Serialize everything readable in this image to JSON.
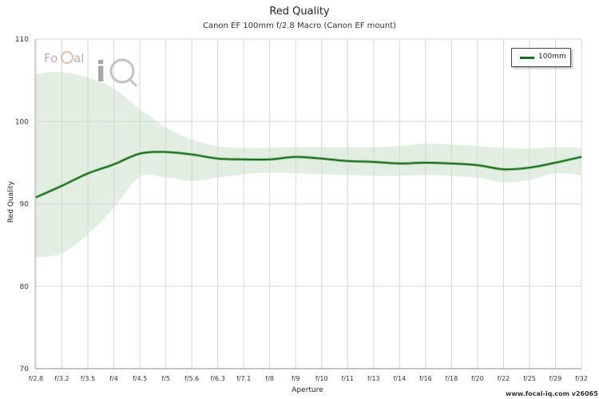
{
  "chart_data": {
    "type": "line",
    "title": "Red Quality",
    "subtitle": "Canon EF 100mm f/2.8 Macro (Canon EF mount)",
    "xlabel": "Aperture",
    "ylabel": "Red Quality",
    "ylim": [
      70,
      110
    ],
    "yticks": [
      70,
      80,
      90,
      100,
      110
    ],
    "categories": [
      "f/2.8",
      "f/3.2",
      "f/3.5",
      "f/4",
      "f/4.5",
      "f/5",
      "f/5.6",
      "f/6.3",
      "f/7.1",
      "f/8",
      "f/9",
      "f/10",
      "f/11",
      "f/13",
      "f/14",
      "f/16",
      "f/18",
      "f/20",
      "f/22",
      "f/25",
      "f/29",
      "f/32"
    ],
    "grid": true,
    "legend_position": "top-right",
    "series": [
      {
        "name": "100mm",
        "color": "#1a6e1a",
        "band_color": "#dbeadb",
        "values": [
          90.8,
          92.2,
          93.7,
          94.8,
          96.1,
          96.3,
          96.0,
          95.5,
          95.4,
          95.4,
          95.7,
          95.5,
          95.2,
          95.1,
          94.9,
          95.0,
          94.9,
          94.7,
          94.2,
          94.4,
          95.0,
          95.7
        ],
        "upper": [
          105.8,
          106.0,
          105.3,
          104.0,
          101.5,
          99.3,
          97.8,
          97.0,
          96.8,
          96.8,
          96.9,
          96.9,
          96.9,
          96.9,
          97.0,
          97.3,
          97.2,
          97.0,
          96.8,
          96.7,
          96.9,
          96.8
        ],
        "lower": [
          83.5,
          84.0,
          86.3,
          89.5,
          93.3,
          93.2,
          92.8,
          93.2,
          93.6,
          93.8,
          93.7,
          93.6,
          93.5,
          93.4,
          93.4,
          93.5,
          93.4,
          93.2,
          92.6,
          92.9,
          93.7,
          93.5
        ]
      }
    ]
  },
  "watermark": "www.focal-iq.com  v26065",
  "logo_text": {
    "part1": "Fo",
    "part2": "C",
    "part3": "al",
    "part4": "iQ"
  }
}
